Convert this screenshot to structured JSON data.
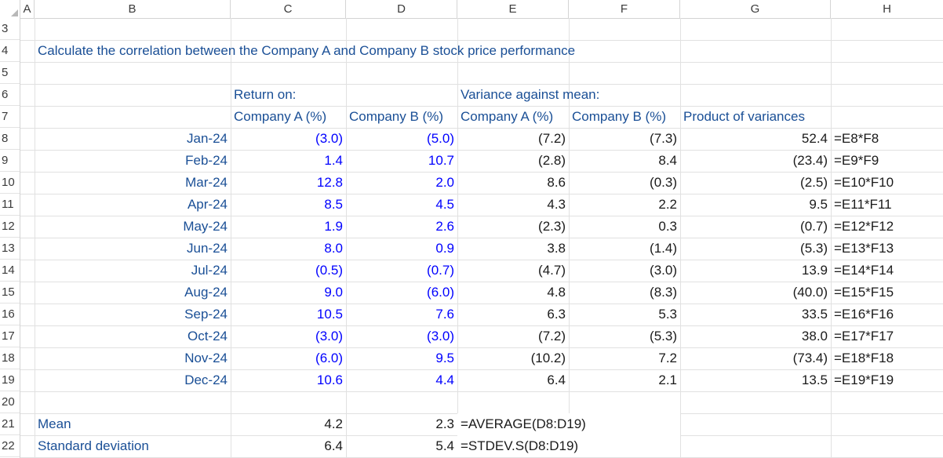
{
  "columns": [
    "A",
    "B",
    "C",
    "D",
    "E",
    "F",
    "G",
    "H"
  ],
  "rows": [
    "3",
    "4",
    "5",
    "6",
    "7",
    "8",
    "9",
    "10",
    "11",
    "12",
    "13",
    "14",
    "15",
    "16",
    "17",
    "18",
    "19",
    "20",
    "21",
    "22"
  ],
  "title": "Calculate the correlation between the Company A and Company B stock price performance",
  "headers": {
    "return_on": "Return on:",
    "variance_against_mean": "Variance against mean:",
    "company_a_pct": "Company A (%)",
    "company_b_pct": "Company B (%)",
    "company_a_pct_var": "Company A (%)",
    "company_b_pct_var": "Company B (%)",
    "product_of_variances": "Product of variances"
  },
  "data_rows": [
    {
      "month": "Jan-24",
      "ra": "(3.0)",
      "rb": "(5.0)",
      "va": "(7.2)",
      "vb": "(7.3)",
      "prod": "52.4",
      "formula": "=E8*F8"
    },
    {
      "month": "Feb-24",
      "ra": "1.4",
      "rb": "10.7",
      "va": "(2.8)",
      "vb": "8.4",
      "prod": "(23.4)",
      "formula": "=E9*F9"
    },
    {
      "month": "Mar-24",
      "ra": "12.8",
      "rb": "2.0",
      "va": "8.6",
      "vb": "(0.3)",
      "prod": "(2.5)",
      "formula": "=E10*F10"
    },
    {
      "month": "Apr-24",
      "ra": "8.5",
      "rb": "4.5",
      "va": "4.3",
      "vb": "2.2",
      "prod": "9.5",
      "formula": "=E11*F11"
    },
    {
      "month": "May-24",
      "ra": "1.9",
      "rb": "2.6",
      "va": "(2.3)",
      "vb": "0.3",
      "prod": "(0.7)",
      "formula": "=E12*F12"
    },
    {
      "month": "Jun-24",
      "ra": "8.0",
      "rb": "0.9",
      "va": "3.8",
      "vb": "(1.4)",
      "prod": "(5.3)",
      "formula": "=E13*F13"
    },
    {
      "month": "Jul-24",
      "ra": "(0.5)",
      "rb": "(0.7)",
      "va": "(4.7)",
      "vb": "(3.0)",
      "prod": "13.9",
      "formula": "=E14*F14"
    },
    {
      "month": "Aug-24",
      "ra": "9.0",
      "rb": "(6.0)",
      "va": "4.8",
      "vb": "(8.3)",
      "prod": "(40.0)",
      "formula": "=E15*F15"
    },
    {
      "month": "Sep-24",
      "ra": "10.5",
      "rb": "7.6",
      "va": "6.3",
      "vb": "5.3",
      "prod": "33.5",
      "formula": "=E16*F16"
    },
    {
      "month": "Oct-24",
      "ra": "(3.0)",
      "rb": "(3.0)",
      "va": "(7.2)",
      "vb": "(5.3)",
      "prod": "38.0",
      "formula": "=E17*F17"
    },
    {
      "month": "Nov-24",
      "ra": "(6.0)",
      "rb": "9.5",
      "va": "(10.2)",
      "vb": "7.2",
      "prod": "(73.4)",
      "formula": "=E18*F18"
    },
    {
      "month": "Dec-24",
      "ra": "10.6",
      "rb": "4.4",
      "va": "6.4",
      "vb": "2.1",
      "prod": "13.5",
      "formula": "=E19*F19"
    }
  ],
  "summary": {
    "mean_label": "Mean",
    "mean_a": "4.2",
    "mean_b": "2.3",
    "mean_formula": "=AVERAGE(D8:D19)",
    "sd_label": "Standard deviation",
    "sd_a": "6.4",
    "sd_b": "5.4",
    "sd_formula": "=STDEV.S(D8:D19)"
  }
}
